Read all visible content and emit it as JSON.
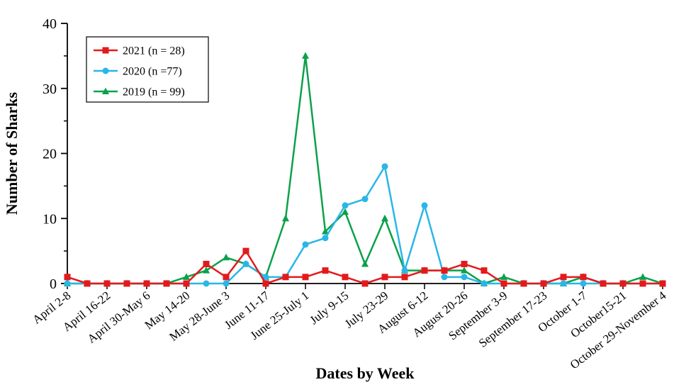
{
  "chart_data": {
    "type": "line",
    "title": "",
    "xlabel": "Dates by Week",
    "ylabel": "Number of Sharks",
    "ylim": [
      0,
      40
    ],
    "y_major_ticks": [
      0,
      10,
      20,
      30,
      40
    ],
    "y_minor_step": 5,
    "grid": false,
    "legend_position": "top-left",
    "n_points": 31,
    "x_tick_every": 2,
    "x_tick_labels": [
      "April 2-8",
      "April 16-22",
      "April 30-May 6",
      "May 14-20",
      "May 28-June 3",
      "June 11-17",
      "June 25-July 1",
      "July 9-15",
      "July 23-29",
      "August 6-12",
      "August 20-26",
      "September 3-9",
      "September 17-23",
      "October 1-7",
      "October15-21",
      "October 29-November 4"
    ],
    "series": [
      {
        "name": "2021 (n = 28)",
        "year": "2021",
        "color": "#e31a1c",
        "marker": "square",
        "values": [
          1,
          0,
          0,
          0,
          0,
          0,
          0,
          3,
          1,
          5,
          0,
          1,
          1,
          2,
          1,
          0,
          1,
          1,
          2,
          2,
          3,
          2,
          0,
          0,
          0,
          1,
          1,
          0,
          0,
          0,
          0
        ]
      },
      {
        "name": "2020 (n =77)",
        "year": "2020",
        "color": "#29b6e8",
        "marker": "circle",
        "values": [
          0,
          0,
          0,
          0,
          0,
          0,
          0,
          0,
          0,
          3,
          1,
          1,
          6,
          7,
          12,
          13,
          18,
          2,
          12,
          1,
          1,
          0,
          0,
          0,
          0,
          0,
          0,
          0,
          0,
          0,
          0
        ]
      },
      {
        "name": "2019 (n = 99)",
        "year": "2019",
        "color": "#0ba14a",
        "marker": "triangle",
        "values": [
          0,
          0,
          0,
          0,
          0,
          0,
          1,
          2,
          4,
          3,
          1,
          10,
          35,
          8,
          11,
          3,
          10,
          2,
          2,
          2,
          2,
          0,
          1,
          0,
          0,
          0,
          1,
          0,
          0,
          1,
          0
        ]
      }
    ]
  }
}
